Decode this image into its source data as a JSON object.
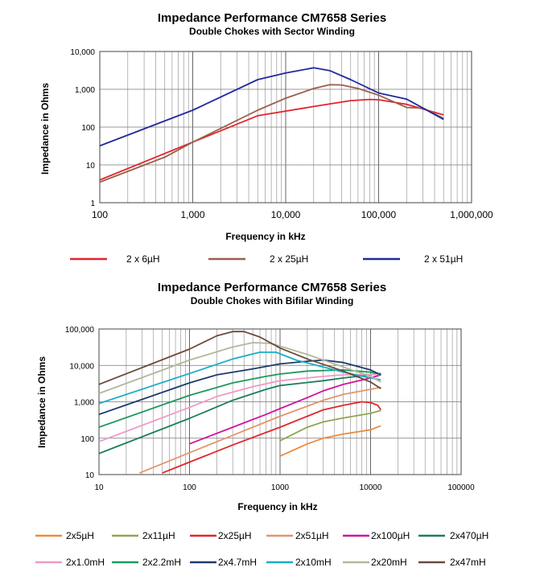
{
  "chart_data": [
    {
      "type": "line",
      "title_prefix": "Impedance Performance",
      "title_model": "CM7658",
      "title_suffix": "Series",
      "subtitle": "Double Chokes with Sector Winding",
      "xlabel": "Frequency in kHz",
      "ylabel": "Impedance in Ohms",
      "x_scale": "log",
      "y_scale": "log",
      "xlim": [
        100,
        1000000
      ],
      "ylim": [
        1,
        10000
      ],
      "x_ticks": [
        "100",
        "1,000",
        "10,000",
        "100,000",
        "1,000,000"
      ],
      "y_ticks": [
        "1",
        "10",
        "100",
        "1,000",
        "10,000"
      ],
      "grid": true,
      "legend_position": "bottom",
      "series": [
        {
          "name": "2 x 6µH",
          "color": "#e0262c",
          "points": [
            [
              100,
              4
            ],
            [
              1000,
              40
            ],
            [
              5000,
              200
            ],
            [
              20000,
              350
            ],
            [
              50000,
              500
            ],
            [
              80000,
              540
            ],
            [
              100000,
              530
            ],
            [
              200000,
              400
            ],
            [
              500000,
              210
            ]
          ]
        },
        {
          "name": "2 x 25µH",
          "color": "#9a5f4d",
          "points": [
            [
              100,
              3.5
            ],
            [
              500,
              16
            ],
            [
              1000,
              40
            ],
            [
              5000,
              280
            ],
            [
              10000,
              580
            ],
            [
              20000,
              1050
            ],
            [
              30000,
              1320
            ],
            [
              40000,
              1300
            ],
            [
              60000,
              1050
            ],
            [
              100000,
              700
            ],
            [
              200000,
              330
            ],
            [
              300000,
              320
            ],
            [
              500000,
              170
            ]
          ]
        },
        {
          "name": "2 x 51µH",
          "color": "#1f2a9c",
          "points": [
            [
              100,
              32
            ],
            [
              1000,
              280
            ],
            [
              5000,
              1800
            ],
            [
              10000,
              2700
            ],
            [
              20000,
              3700
            ],
            [
              30000,
              3100
            ],
            [
              50000,
              1800
            ],
            [
              100000,
              800
            ],
            [
              200000,
              550
            ],
            [
              500000,
              160
            ]
          ]
        }
      ]
    },
    {
      "type": "line",
      "title_prefix": "Impedance Performance",
      "title_model": "CM7658",
      "title_suffix": "Series",
      "subtitle": "Double Chokes with Bifilar Winding",
      "xlabel": "Frequency in kHz",
      "ylabel": "Impedance in Ohms",
      "x_scale": "log",
      "y_scale": "log",
      "xlim": [
        10,
        100000
      ],
      "ylim": [
        10,
        100000
      ],
      "x_ticks": [
        "10",
        "100",
        "1000",
        "10000",
        "100000"
      ],
      "y_ticks": [
        "10",
        "100",
        "1,000",
        "10,000",
        "100,000"
      ],
      "grid": true,
      "legend_position": "bottom",
      "series": [
        {
          "name": "2x5µH",
          "color": "#ee8a3c",
          "points": [
            [
              1000,
              32
            ],
            [
              2000,
              70
            ],
            [
              3000,
              100
            ],
            [
              5000,
              130
            ],
            [
              10000,
              170
            ],
            [
              13000,
              220
            ]
          ]
        },
        {
          "name": "2x11µH",
          "color": "#8fa650",
          "points": [
            [
              1000,
              85
            ],
            [
              2000,
              200
            ],
            [
              3000,
              280
            ],
            [
              5000,
              360
            ],
            [
              10000,
              480
            ],
            [
              13000,
              580
            ]
          ]
        },
        {
          "name": "2x25µH",
          "color": "#e0262c",
          "points": [
            [
              50,
              11
            ],
            [
              100,
              22
            ],
            [
              300,
              65
            ],
            [
              1000,
              200
            ],
            [
              2000,
              400
            ],
            [
              3000,
              600
            ],
            [
              5000,
              800
            ],
            [
              8000,
              1000
            ],
            [
              10000,
              950
            ],
            [
              12000,
              800
            ],
            [
              13000,
              600
            ]
          ]
        },
        {
          "name": "2x51µH",
          "color": "#e3956a",
          "points": [
            [
              28,
              11
            ],
            [
              100,
              40
            ],
            [
              300,
              120
            ],
            [
              1000,
              400
            ],
            [
              3000,
              1100
            ],
            [
              5000,
              1600
            ],
            [
              10000,
              2200
            ],
            [
              13000,
              2500
            ]
          ]
        },
        {
          "name": "2x100µH",
          "color": "#d0139f",
          "points": [
            [
              100,
              70
            ],
            [
              300,
              200
            ],
            [
              700,
              450
            ],
            [
              1000,
              650
            ],
            [
              2000,
              1300
            ],
            [
              3000,
              2000
            ],
            [
              5000,
              3000
            ],
            [
              10000,
              4500
            ],
            [
              13000,
              5500
            ]
          ]
        },
        {
          "name": "2x470µH",
          "color": "#1a7f5c",
          "points": [
            [
              10,
              38
            ],
            [
              100,
              350
            ],
            [
              300,
              1100
            ],
            [
              700,
              2200
            ],
            [
              1000,
              2800
            ],
            [
              3000,
              3800
            ],
            [
              5000,
              4500
            ],
            [
              10000,
              5500
            ],
            [
              13000,
              6000
            ]
          ]
        },
        {
          "name": "2x1.0mH",
          "color": "#ed9ac8",
          "points": [
            [
              10,
              80
            ],
            [
              100,
              700
            ],
            [
              200,
              1400
            ],
            [
              500,
              2600
            ],
            [
              1000,
              3800
            ],
            [
              3000,
              5000
            ],
            [
              5000,
              5500
            ],
            [
              10000,
              5600
            ],
            [
              13000,
              5600
            ]
          ]
        },
        {
          "name": "2x2.2mH",
          "color": "#1a9a5c",
          "points": [
            [
              10,
              200
            ],
            [
              100,
              1500
            ],
            [
              300,
              3300
            ],
            [
              700,
              5000
            ],
            [
              1000,
              5800
            ],
            [
              2000,
              7000
            ],
            [
              5000,
              7500
            ],
            [
              10000,
              6500
            ],
            [
              13000,
              5800
            ]
          ]
        },
        {
          "name": "2x4.7mH",
          "color": "#1c3a6e",
          "points": [
            [
              10,
              450
            ],
            [
              100,
              3300
            ],
            [
              200,
              5500
            ],
            [
              500,
              8000
            ],
            [
              1000,
              11000
            ],
            [
              2000,
              13000
            ],
            [
              3000,
              14000
            ],
            [
              5000,
              12000
            ],
            [
              10000,
              7500
            ],
            [
              13000,
              5500
            ]
          ]
        },
        {
          "name": "2x10mH",
          "color": "#18aec3",
          "points": [
            [
              10,
              900
            ],
            [
              100,
              6000
            ],
            [
              300,
              15000
            ],
            [
              600,
              23000
            ],
            [
              900,
              23000
            ],
            [
              1500,
              14000
            ],
            [
              3000,
              9000
            ],
            [
              5000,
              6500
            ],
            [
              10000,
              4500
            ],
            [
              13000,
              4000
            ]
          ]
        },
        {
          "name": "2x20mH",
          "color": "#b2b79a",
          "points": [
            [
              10,
              1700
            ],
            [
              100,
              14000
            ],
            [
              300,
              32000
            ],
            [
              500,
              42000
            ],
            [
              800,
              40000
            ],
            [
              2000,
              20000
            ],
            [
              5000,
              9000
            ],
            [
              10000,
              5000
            ],
            [
              13000,
              3500
            ]
          ]
        },
        {
          "name": "2x47mH",
          "color": "#6b4a3a",
          "points": [
            [
              10,
              3000
            ],
            [
              100,
              28000
            ],
            [
              200,
              65000
            ],
            [
              300,
              85000
            ],
            [
              400,
              85000
            ],
            [
              600,
              60000
            ],
            [
              1000,
              30000
            ],
            [
              2000,
              15000
            ],
            [
              5000,
              7000
            ],
            [
              10000,
              3500
            ],
            [
              13000,
              2300
            ]
          ]
        }
      ]
    }
  ]
}
